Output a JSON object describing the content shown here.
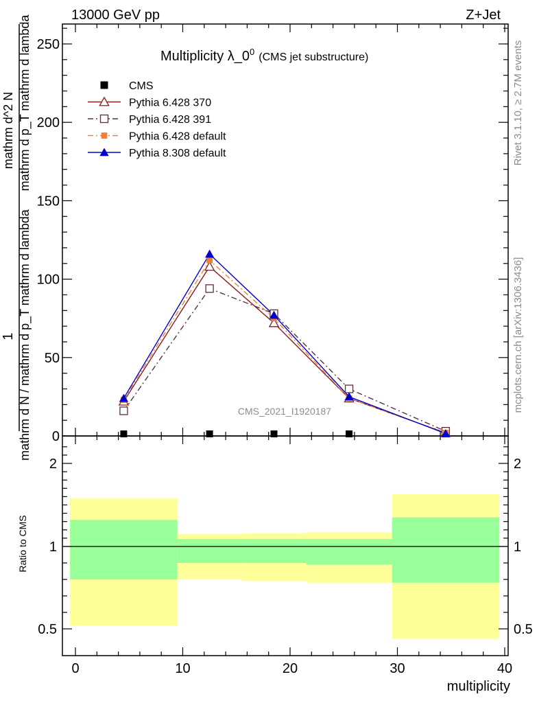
{
  "header": {
    "left": "13000 GeV pp",
    "right": "Z+Jet"
  },
  "side": {
    "rivet": "Rivet 3.1.10, ≥ 2.7M events",
    "mcplots": "mcplots.cern.ch [arXiv:1306.3436]"
  },
  "chart_data": {
    "type": "line",
    "title": "Multiplicity λ_0",
    "title_sup": "0",
    "subtitle": "(CMS jet substructure)",
    "watermark": "CMS_2021_I1920187",
    "xlabel": "multiplicity",
    "ylabel_num": "1",
    "ylabel_den": "mathrm d N / mathrm d p_T mathrm d lambda",
    "ylabel_top": "mathrm d^2 N",
    "ylabel_mid": "mathrm d p_T mathrm d lambda",
    "ratio_ylabel": "Ratio to CMS",
    "xlim": [
      -1,
      40
    ],
    "ylim": [
      0,
      262
    ],
    "ratio_ylim": [
      0.42,
      2.28
    ],
    "xticks": [
      0,
      10,
      20,
      30,
      40
    ],
    "yticks": [
      0,
      50,
      100,
      150,
      200,
      250
    ],
    "ratio_yticks": [
      0.5,
      1,
      2
    ],
    "bins": [
      {
        "lo": -0.5,
        "hi": 9.5,
        "x": 4.5
      },
      {
        "lo": 9.5,
        "hi": 15.5,
        "x": 12.5
      },
      {
        "lo": 15.5,
        "hi": 21.5,
        "x": 18.5
      },
      {
        "lo": 21.5,
        "hi": 29.5,
        "x": 25.5
      },
      {
        "lo": 29.5,
        "hi": 39.5,
        "x": 34.5
      }
    ],
    "cms": [
      0.1,
      0.1,
      0.1,
      0.1,
      0.1
    ],
    "series": [
      {
        "name": "CMS",
        "color": "#000000",
        "marker": "square-filled",
        "line": "none",
        "values": [
          0.1,
          0.1,
          0.1,
          0.1,
          0.1
        ]
      },
      {
        "name": "Pythia 6.428 370",
        "color": "#8b1a1a",
        "marker": "triangle-open",
        "line": "solid",
        "values": [
          22,
          108,
          72,
          24,
          2
        ]
      },
      {
        "name": "Pythia 6.428 391",
        "color": "#5e2d3b",
        "marker": "square-open",
        "line": "dashdot",
        "values": [
          16,
          94,
          78,
          30,
          3
        ]
      },
      {
        "name": "Pythia 6.428 default",
        "color": "#f08030",
        "marker": "square-filled-small",
        "line": "dashdot",
        "values": [
          23,
          112,
          75,
          24,
          2
        ]
      },
      {
        "name": "Pythia 8.308 default",
        "color": "#0000cc",
        "marker": "triangle-filled",
        "line": "solid",
        "values": [
          24,
          116,
          77,
          25,
          1.5
        ]
      }
    ],
    "bands": {
      "yellow": [
        [
          0.52,
          1.58
        ],
        [
          0.8,
          1.15
        ],
        [
          0.79,
          1.16
        ],
        [
          0.78,
          1.17
        ],
        [
          0.44,
          1.63
        ]
      ],
      "green": [
        [
          0.8,
          1.32
        ],
        [
          0.9,
          1.09
        ],
        [
          0.9,
          1.09
        ],
        [
          0.89,
          1.09
        ],
        [
          0.78,
          1.35
        ]
      ]
    },
    "grid": false,
    "legend": "top-left"
  }
}
